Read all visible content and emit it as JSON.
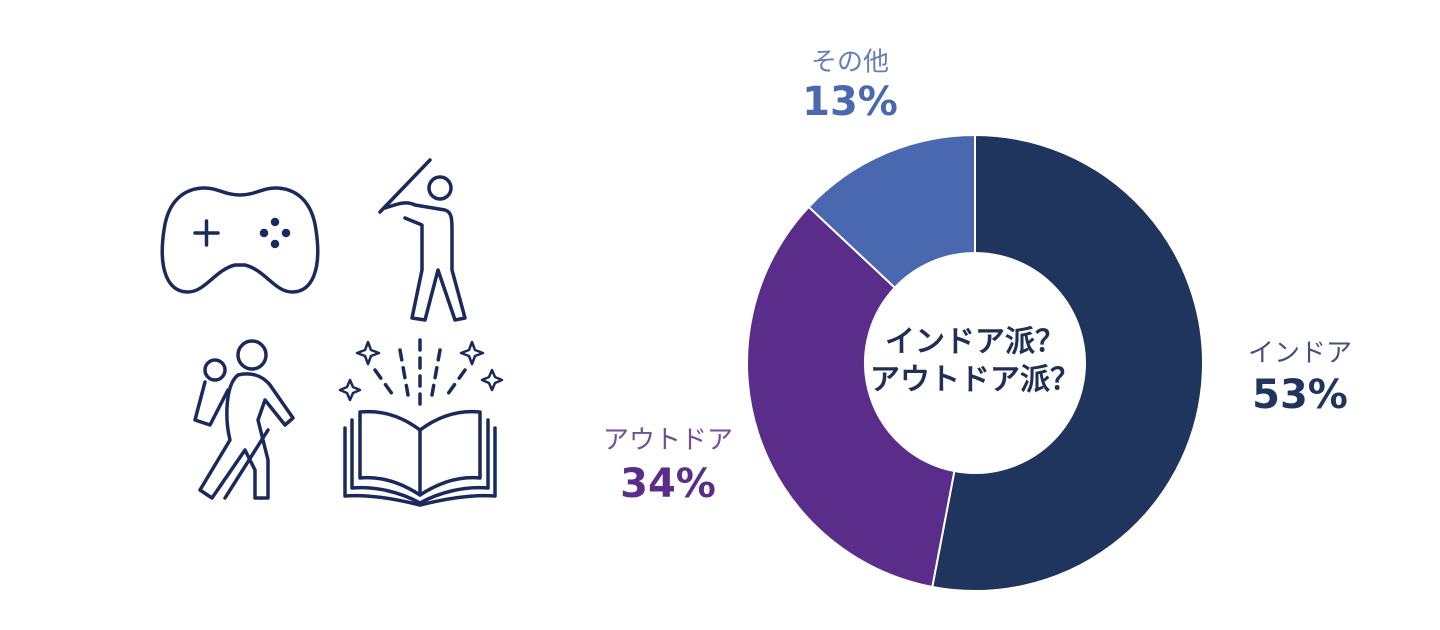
{
  "chart_data": {
    "type": "pie",
    "donut": true,
    "categories": [
      "インドア",
      "アウトドア",
      "その他"
    ],
    "values": [
      53,
      34,
      13
    ],
    "value_labels": [
      "53%",
      "34%",
      "13%"
    ],
    "colors": [
      "#1f355e",
      "#5b2d8a",
      "#4a68b0"
    ],
    "center_label": [
      "インドア派？",
      "アウトドア派？"
    ]
  }
}
